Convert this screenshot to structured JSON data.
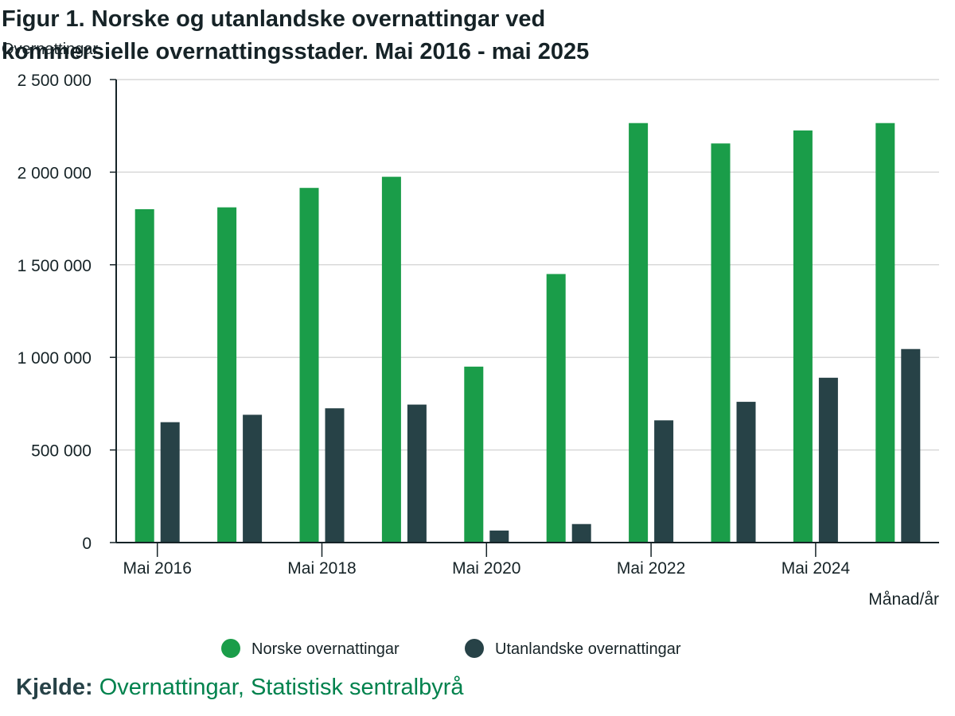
{
  "colors": {
    "norske": "#1a9d49",
    "utanlandske": "#274247",
    "grid": "#d8d8d8",
    "axis": "#162327",
    "link": "#00824d"
  },
  "chart_data": {
    "type": "bar",
    "title_line1": "Figur 1. Norske og utanlandske overnattingar ved",
    "title_line2": "kommersielle overnattingsstader. Mai 2016 - mai 2025",
    "ylabel": "Overnattingar",
    "xlabel": "Månad/år",
    "ylim": [
      0,
      2500000
    ],
    "yticks": [
      0,
      500000,
      1000000,
      1500000,
      2000000,
      2500000
    ],
    "ytick_labels": [
      "0",
      "500 000",
      "1 000 000",
      "1 500 000",
      "2 000 000",
      "2 500 000"
    ],
    "categories": [
      "2016",
      "2017",
      "2018",
      "2019",
      "2020",
      "2021",
      "2022",
      "2023",
      "2024",
      "2025"
    ],
    "x_tick_labels": [
      {
        "index": 0,
        "label": "Mai 2016"
      },
      {
        "index": 2,
        "label": "Mai 2018"
      },
      {
        "index": 4,
        "label": "Mai 2020"
      },
      {
        "index": 6,
        "label": "Mai 2022"
      },
      {
        "index": 8,
        "label": "Mai 2024"
      }
    ],
    "series": [
      {
        "name": "Norske overnattingar",
        "color_key": "norske",
        "values": [
          1800000,
          1810000,
          1915000,
          1975000,
          950000,
          1450000,
          2265000,
          2155000,
          2225000,
          2265000
        ]
      },
      {
        "name": "Utanlandske overnattingar",
        "color_key": "utanlandske",
        "values": [
          650000,
          690000,
          725000,
          745000,
          65000,
          100000,
          660000,
          760000,
          890000,
          1045000
        ]
      }
    ],
    "grid": true,
    "legend_position": "bottom"
  },
  "source": {
    "label": "Kjelde:",
    "text": "Overnattingar, Statistisk sentralbyrå"
  }
}
